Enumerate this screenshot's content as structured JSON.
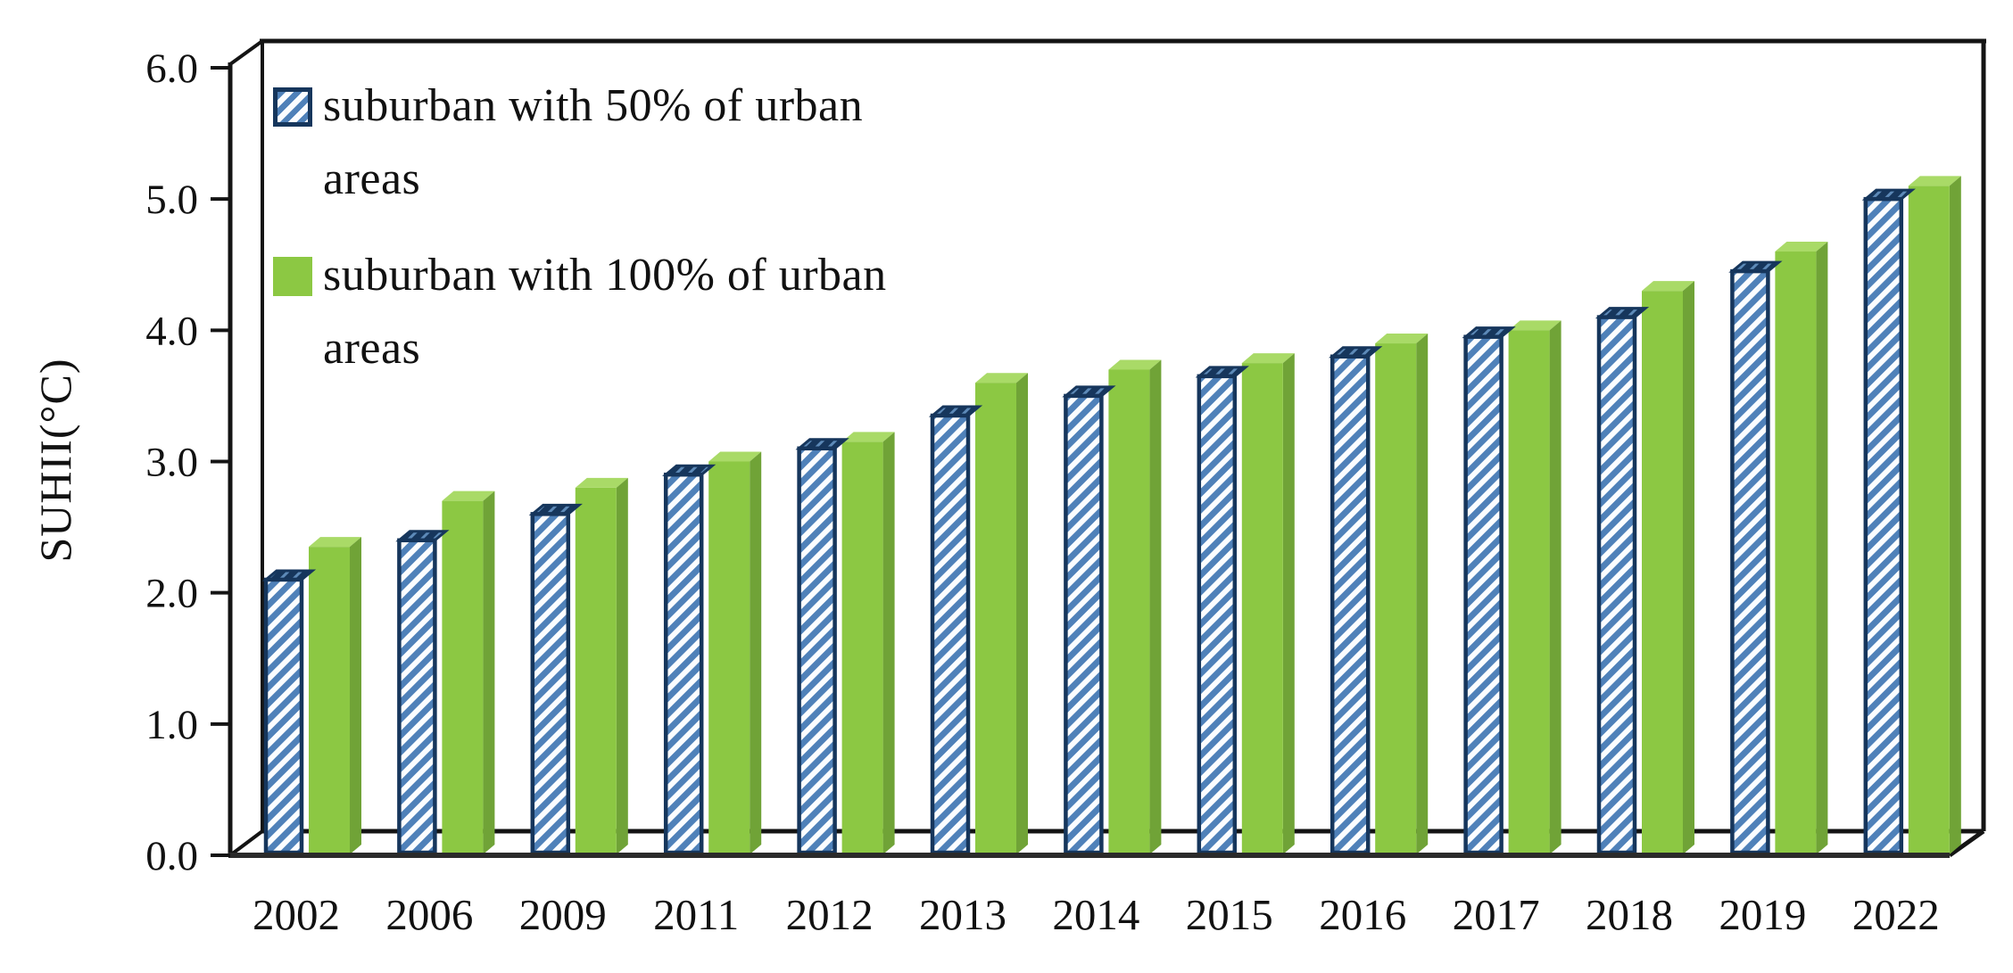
{
  "chart_data": {
    "type": "bar",
    "effect": "3d",
    "title": "",
    "xlabel": "",
    "ylabel": "SUHII(°C)",
    "ylim": [
      0.0,
      6.0
    ],
    "ytick_step": 1.0,
    "ytick_labels": [
      "0.0",
      "1.0",
      "2.0",
      "3.0",
      "4.0",
      "5.0",
      "6.0"
    ],
    "grid": false,
    "legend_position": "top-left-inside",
    "categories": [
      "2002",
      "2006",
      "2009",
      "2011",
      "2012",
      "2013",
      "2014",
      "2015",
      "2016",
      "2017",
      "2018",
      "2019",
      "2022"
    ],
    "series": [
      {
        "name": "suburban with 50% of urban areas",
        "style": "blue-hatched",
        "values": [
          2.1,
          2.4,
          2.6,
          2.9,
          3.1,
          3.35,
          3.5,
          3.65,
          3.8,
          3.95,
          4.1,
          4.45,
          5.0
        ]
      },
      {
        "name": "suburban with 100% of urban areas",
        "style": "green-solid",
        "values": [
          2.35,
          2.7,
          2.8,
          3.0,
          3.15,
          3.6,
          3.7,
          3.75,
          3.9,
          4.0,
          4.3,
          4.6,
          5.1
        ]
      }
    ]
  },
  "legend": {
    "items": [
      {
        "label": "suburban with 50% of urban areas",
        "line1": "suburban with 50% of urban",
        "line2": "areas",
        "swatch": "blue-hatch"
      },
      {
        "label": "suburban with 100% of urban areas",
        "line1": "suburban with 100% of urban",
        "line2": "areas",
        "swatch": "green-solid"
      }
    ]
  },
  "colors": {
    "series1_stripe": "#4f81b9",
    "series1_bg": "#fbfdff",
    "series1_outline": "#16365c",
    "series1_cap_bg": "#16365c",
    "series1_cap_stripe": "#5d8ab8",
    "series2_front": "#8cc843",
    "series2_top": "#a9da67",
    "series2_side": "#70a337",
    "axis_line": "#141414",
    "baseline": "#2b2b2b",
    "text": "#111111"
  }
}
